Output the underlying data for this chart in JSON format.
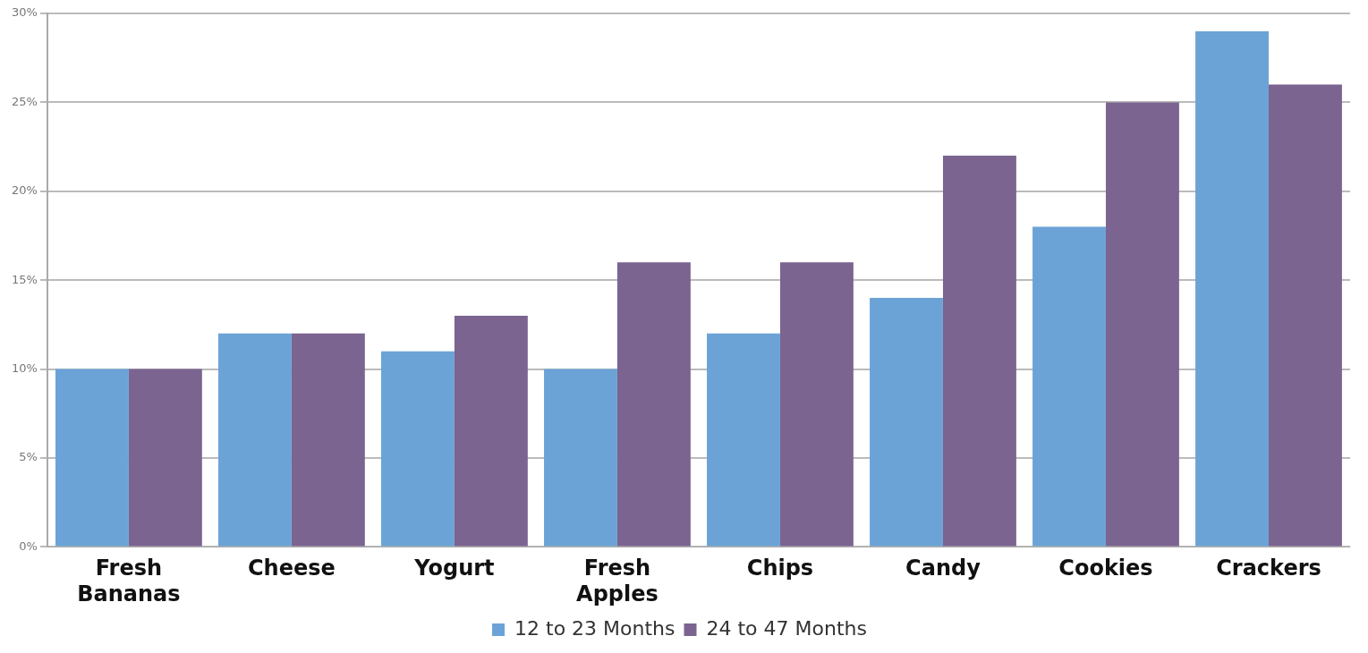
{
  "chart_data": {
    "type": "bar",
    "categories": [
      "Fresh Bananas",
      "Cheese",
      "Yogurt",
      "Fresh Apples",
      "Chips",
      "Candy",
      "Cookies",
      "Crackers"
    ],
    "series": [
      {
        "name": "12 to 23 Months",
        "color": "#6ba3d6",
        "values": [
          10,
          12,
          11,
          10,
          12,
          14,
          18,
          29
        ]
      },
      {
        "name": "24 to 47 Months",
        "color": "#7b6490",
        "values": [
          10,
          12,
          13,
          16,
          16,
          22,
          25,
          26
        ]
      }
    ],
    "ylim": [
      0,
      30
    ],
    "yticks": [
      {
        "value": 0,
        "label": "0%"
      },
      {
        "value": 5,
        "label": "5%"
      },
      {
        "value": 10,
        "label": "10%"
      },
      {
        "value": 15,
        "label": "15%"
      },
      {
        "value": 20,
        "label": "20%"
      },
      {
        "value": 25,
        "label": "25%"
      },
      {
        "value": 30,
        "label": "30%"
      }
    ],
    "grid": "y",
    "legend": "bottom"
  }
}
